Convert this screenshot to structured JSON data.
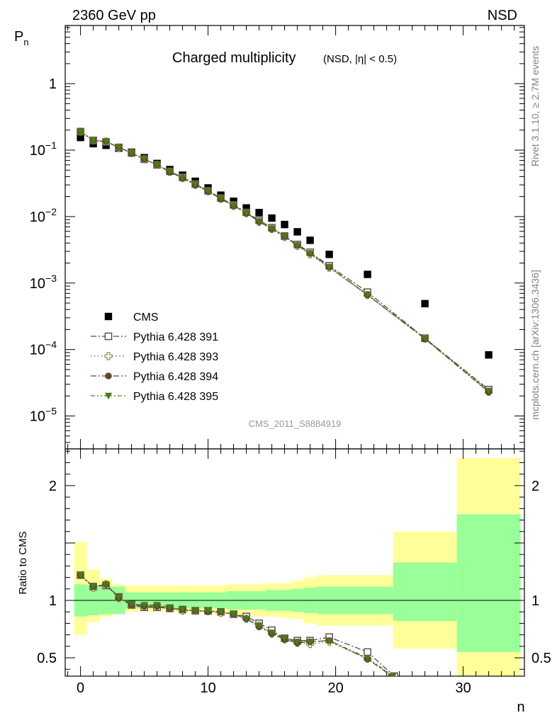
{
  "header": {
    "left": "2360 GeV pp",
    "right": "NSD"
  },
  "side_labels": {
    "rivet": "Rivet 3.1.10, ≥ 2.7M events",
    "mcplots": "mcplots.cern.ch [arXiv:1306.3436]"
  },
  "chart_data": [
    {
      "type": "scatter",
      "title": "Charged multiplicity",
      "subtitle": "(NSD, |η| < 0.5)",
      "ylabel": "P",
      "ylabel_sub": "n",
      "xlabel": "n",
      "watermark": "CMS_2011_S8884919",
      "y_scale": "log",
      "xlim": [
        -1.2,
        34.8
      ],
      "ylim": [
        3.2e-06,
        7.5
      ],
      "x_ticks": [
        0,
        10,
        20,
        30
      ],
      "y_ticks": [
        {
          "value": 1e-05,
          "base": "10",
          "exp": "−5"
        },
        {
          "value": 0.0001,
          "base": "10",
          "exp": "−4"
        },
        {
          "value": 0.001,
          "base": "10",
          "exp": "−3"
        },
        {
          "value": 0.01,
          "base": "10",
          "exp": "−2"
        },
        {
          "value": 0.1,
          "base": "10",
          "exp": "−1"
        },
        {
          "value": 1,
          "base": "1",
          "exp": ""
        }
      ],
      "legend_position": "bottom-left",
      "series": [
        {
          "name": "CMS",
          "marker": "filled-square",
          "color": "#000000",
          "x": [
            0,
            1,
            2,
            3,
            4,
            5,
            6,
            7,
            8,
            9,
            10,
            11,
            12,
            13,
            14,
            15,
            16,
            17,
            18,
            19.5,
            22.5,
            27,
            32
          ],
          "y": [
            0.155,
            0.125,
            0.118,
            0.107,
            0.093,
            0.077,
            0.063,
            0.051,
            0.042,
            0.034,
            0.027,
            0.021,
            0.017,
            0.0135,
            0.0115,
            0.0095,
            0.0076,
            0.0059,
            0.0044,
            0.0027,
            0.00135,
            0.00049,
            8.3e-05
          ]
        },
        {
          "name": "Pythia 6.428 391",
          "marker": "open-square",
          "color": "#6b3a57",
          "dash": "dash-dot",
          "x": [
            0,
            1,
            2,
            3,
            4,
            5,
            6,
            7,
            8,
            9,
            10,
            11,
            12,
            13,
            14,
            15,
            16,
            17,
            18,
            19.5,
            22.5,
            27,
            32
          ],
          "y": [
            0.19,
            0.14,
            0.133,
            0.11,
            0.091,
            0.073,
            0.06,
            0.048,
            0.039,
            0.031,
            0.0245,
            0.019,
            0.015,
            0.0116,
            0.0088,
            0.0068,
            0.0051,
            0.0038,
            0.0029,
            0.00182,
            0.00073,
            0.000148,
            2.5e-05
          ]
        },
        {
          "name": "Pythia 6.428 393",
          "marker": "open-cross",
          "color": "#8c8c4a",
          "dash": "dotted",
          "x": [
            0,
            1,
            2,
            3,
            4,
            5,
            6,
            7,
            8,
            9,
            10,
            11,
            12,
            13,
            14,
            15,
            16,
            17,
            18,
            19.5,
            22.5,
            27,
            32
          ],
          "y": [
            0.19,
            0.14,
            0.135,
            0.109,
            0.09,
            0.073,
            0.06,
            0.047,
            0.038,
            0.03,
            0.024,
            0.0185,
            0.0145,
            0.0112,
            0.0083,
            0.0065,
            0.0049,
            0.0036,
            0.0027,
            0.0017,
            0.00066,
            0.000145,
            2.3e-05
          ]
        },
        {
          "name": "Pythia 6.428 394",
          "marker": "filled-circle",
          "color": "#5a4a2a",
          "dash": "dash-dot",
          "x": [
            0,
            1,
            2,
            3,
            4,
            5,
            6,
            7,
            8,
            9,
            10,
            11,
            12,
            13,
            14,
            15,
            16,
            17,
            18,
            19.5,
            22.5,
            27,
            32
          ],
          "y": [
            0.19,
            0.14,
            0.135,
            0.11,
            0.09,
            0.073,
            0.06,
            0.047,
            0.038,
            0.03,
            0.024,
            0.0185,
            0.0145,
            0.0113,
            0.0084,
            0.0065,
            0.005,
            0.0037,
            0.0028,
            0.00174,
            0.00066,
            0.000145,
            2.3e-05
          ]
        },
        {
          "name": "Pythia 6.428 395",
          "marker": "filled-triangle-down",
          "color": "#4a7a1a",
          "dash": "dash-dot-dot",
          "x": [
            0,
            1,
            2,
            3,
            4,
            5,
            6,
            7,
            8,
            9,
            10,
            11,
            12,
            13,
            14,
            15,
            16,
            17,
            18,
            19.5,
            22.5,
            27,
            32
          ],
          "y": [
            0.19,
            0.14,
            0.135,
            0.11,
            0.09,
            0.074,
            0.06,
            0.048,
            0.038,
            0.031,
            0.0245,
            0.0188,
            0.0147,
            0.0114,
            0.0085,
            0.0066,
            0.0051,
            0.0037,
            0.0028,
            0.00175,
            0.00067,
            0.000148,
            2.4e-05
          ]
        }
      ]
    },
    {
      "type": "scatter",
      "ylabel": "Ratio to CMS",
      "xlabel": "n",
      "xlim": [
        -1.2,
        34.8
      ],
      "ylim": [
        0.34,
        2.32
      ],
      "x_ticks": [
        0,
        10,
        20,
        30
      ],
      "y_ticks": [
        0.5,
        1,
        2
      ],
      "reference_line": 1,
      "bands": {
        "colors": {
          "stat": "#99ff99",
          "total": "#ffff99"
        },
        "bins": [
          {
            "x": [
              -0.5,
              0.5
            ],
            "stat": [
              0.86,
              1.14
            ],
            "total": [
              0.7,
              1.51
            ]
          },
          {
            "x": [
              0.5,
              1.5
            ],
            "stat": [
              0.87,
              1.13
            ],
            "total": [
              0.81,
              1.27
            ]
          },
          {
            "x": [
              1.5,
              2.5
            ],
            "stat": [
              0.88,
              1.12
            ],
            "total": [
              0.86,
              1.19
            ]
          },
          {
            "x": [
              2.5,
              3.5
            ],
            "stat": [
              0.88,
              1.12
            ],
            "total": [
              0.9,
              1.14
            ]
          },
          {
            "x": [
              3.5,
              4.5
            ],
            "stat": [
              0.93,
              1.07
            ],
            "total": [
              0.9,
              1.13
            ]
          },
          {
            "x": [
              4.5,
              5.5
            ],
            "stat": [
              0.93,
              1.07
            ],
            "total": [
              0.9,
              1.13
            ]
          },
          {
            "x": [
              5.5,
              6.5
            ],
            "stat": [
              0.93,
              1.07
            ],
            "total": [
              0.9,
              1.13
            ]
          },
          {
            "x": [
              6.5,
              7.5
            ],
            "stat": [
              0.93,
              1.07
            ],
            "total": [
              0.9,
              1.13
            ]
          },
          {
            "x": [
              7.5,
              8.5
            ],
            "stat": [
              0.93,
              1.07
            ],
            "total": [
              0.9,
              1.13
            ]
          },
          {
            "x": [
              8.5,
              9.5
            ],
            "stat": [
              0.93,
              1.07
            ],
            "total": [
              0.89,
              1.13
            ]
          },
          {
            "x": [
              9.5,
              10.5
            ],
            "stat": [
              0.93,
              1.07
            ],
            "total": [
              0.89,
              1.13
            ]
          },
          {
            "x": [
              10.5,
              11.5
            ],
            "stat": [
              0.93,
              1.07
            ],
            "total": [
              0.88,
              1.13
            ]
          },
          {
            "x": [
              11.5,
              12.5
            ],
            "stat": [
              0.92,
              1.08
            ],
            "total": [
              0.88,
              1.14
            ]
          },
          {
            "x": [
              12.5,
              13.5
            ],
            "stat": [
              0.92,
              1.08
            ],
            "total": [
              0.87,
              1.14
            ]
          },
          {
            "x": [
              13.5,
              14.5
            ],
            "stat": [
              0.92,
              1.08
            ],
            "total": [
              0.86,
              1.14
            ]
          },
          {
            "x": [
              14.5,
              15.5
            ],
            "stat": [
              0.91,
              1.09
            ],
            "total": [
              0.86,
              1.15
            ]
          },
          {
            "x": [
              15.5,
              16.5
            ],
            "stat": [
              0.91,
              1.09
            ],
            "total": [
              0.85,
              1.15
            ]
          },
          {
            "x": [
              16.5,
              17.5
            ],
            "stat": [
              0.9,
              1.1
            ],
            "total": [
              0.84,
              1.17
            ]
          },
          {
            "x": [
              17.5,
              18.5
            ],
            "stat": [
              0.89,
              1.11
            ],
            "total": [
              0.8,
              1.2
            ]
          },
          {
            "x": [
              18.5,
              24.5
            ],
            "stat": [
              0.88,
              1.12
            ],
            "total": [
              0.78,
              1.22
            ]
          },
          {
            "x": [
              24.5,
              29.5
            ],
            "stat": [
              0.82,
              1.33
            ],
            "total": [
              0.58,
              1.6
            ]
          },
          {
            "x": [
              29.5,
              34.5
            ],
            "stat": [
              0.55,
              1.75
            ],
            "total": [
              0.3,
              2.24
            ]
          }
        ]
      },
      "series": [
        {
          "name": "Pythia 6.428 391",
          "marker": "open-square",
          "color": "#6b3a57",
          "dash": "dash-dot",
          "x": [
            0,
            1,
            2,
            3,
            4,
            5,
            6,
            7,
            8,
            9,
            10,
            11,
            12,
            13,
            14,
            15,
            16,
            17,
            18,
            19.5,
            22.5,
            24.6
          ],
          "y": [
            1.22,
            1.12,
            1.13,
            1.03,
            0.96,
            0.94,
            0.94,
            0.93,
            0.92,
            0.91,
            0.91,
            0.9,
            0.88,
            0.86,
            0.8,
            0.74,
            0.67,
            0.65,
            0.65,
            0.68,
            0.55,
            0.34
          ]
        },
        {
          "name": "Pythia 6.428 393",
          "marker": "open-cross",
          "color": "#8c8c4a",
          "dash": "dotted",
          "x": [
            0,
            1,
            2,
            3,
            4,
            5,
            6,
            7,
            8,
            9,
            10,
            11,
            12,
            13,
            14,
            15,
            16,
            17,
            18,
            19.5,
            22.5,
            24.4
          ],
          "y": [
            1.22,
            1.11,
            1.14,
            1.02,
            0.96,
            0.95,
            0.95,
            0.93,
            0.91,
            0.91,
            0.91,
            0.89,
            0.88,
            0.84,
            0.78,
            0.71,
            0.66,
            0.63,
            0.62,
            0.64,
            0.49,
            0.34
          ]
        },
        {
          "name": "Pythia 6.428 394",
          "marker": "filled-circle",
          "color": "#5a4a2a",
          "dash": "dash-dot",
          "x": [
            0,
            1,
            2,
            3,
            4,
            5,
            6,
            7,
            8,
            9,
            10,
            11,
            12,
            13,
            14,
            15,
            16,
            17,
            18,
            19.5,
            22.5,
            24.4
          ],
          "y": [
            1.22,
            1.12,
            1.14,
            1.02,
            0.96,
            0.95,
            0.95,
            0.93,
            0.92,
            0.91,
            0.9,
            0.9,
            0.88,
            0.84,
            0.77,
            0.71,
            0.66,
            0.63,
            0.64,
            0.65,
            0.49,
            0.34
          ]
        },
        {
          "name": "Pythia 6.428 395",
          "marker": "filled-triangle-down",
          "color": "#4a7a1a",
          "dash": "dash-dot-dot",
          "x": [
            0,
            1,
            2,
            3,
            4,
            5,
            6,
            7,
            8,
            9,
            10,
            11,
            12,
            13,
            14,
            15,
            16,
            17,
            18,
            19.5,
            22.5,
            24.5
          ],
          "y": [
            1.22,
            1.12,
            1.14,
            1.03,
            0.97,
            0.96,
            0.96,
            0.94,
            0.92,
            0.91,
            0.91,
            0.9,
            0.88,
            0.84,
            0.78,
            0.72,
            0.67,
            0.64,
            0.64,
            0.65,
            0.5,
            0.34
          ]
        }
      ]
    }
  ]
}
